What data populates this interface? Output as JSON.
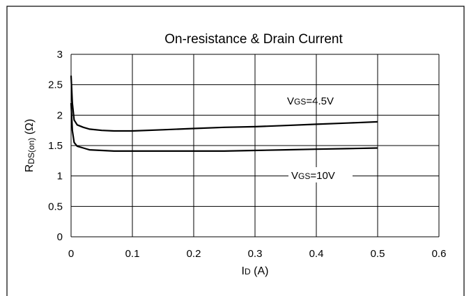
{
  "chart_data": {
    "type": "line",
    "title": "On-resistance & Drain Current",
    "xlabel": {
      "main": "I",
      "sub": "D",
      "rest": " (A)"
    },
    "ylabel": {
      "main": "R",
      "sub": "DS(on)",
      "rest": " (Ω)"
    },
    "xlim": [
      0,
      0.6
    ],
    "ylim": [
      0,
      3
    ],
    "xticks": [
      0,
      0.1,
      0.2,
      0.3,
      0.4,
      0.5,
      0.6
    ],
    "xtick_labels": [
      "0",
      "0.1",
      "0.2",
      "0.3",
      "0.4",
      "0.5",
      "0.6"
    ],
    "yticks": [
      0,
      0.5,
      1,
      1.5,
      2,
      2.5,
      3
    ],
    "ytick_labels": [
      "0",
      "0.5",
      "1",
      "1.5",
      "2",
      "2.5",
      "3"
    ],
    "grid": true,
    "series": [
      {
        "name": "VGS=4.5V",
        "label": {
          "main": "V",
          "sub": "GS",
          "rest": "=4.5V"
        },
        "x": [
          0,
          0.002,
          0.005,
          0.01,
          0.02,
          0.03,
          0.05,
          0.07,
          0.1,
          0.15,
          0.2,
          0.25,
          0.3,
          0.35,
          0.4,
          0.45,
          0.5
        ],
        "y": [
          2.65,
          2.2,
          1.92,
          1.84,
          1.8,
          1.77,
          1.75,
          1.74,
          1.74,
          1.76,
          1.78,
          1.8,
          1.81,
          1.83,
          1.85,
          1.87,
          1.89
        ]
      },
      {
        "name": "VGS=10V",
        "label": {
          "main": "V",
          "sub": "GS",
          "rest": "=10V"
        },
        "x": [
          0,
          0.002,
          0.005,
          0.01,
          0.02,
          0.03,
          0.05,
          0.07,
          0.1,
          0.15,
          0.2,
          0.25,
          0.3,
          0.35,
          0.4,
          0.45,
          0.5
        ],
        "y": [
          2.2,
          1.75,
          1.55,
          1.49,
          1.46,
          1.43,
          1.42,
          1.41,
          1.41,
          1.41,
          1.41,
          1.41,
          1.42,
          1.43,
          1.44,
          1.45,
          1.46
        ]
      }
    ]
  }
}
